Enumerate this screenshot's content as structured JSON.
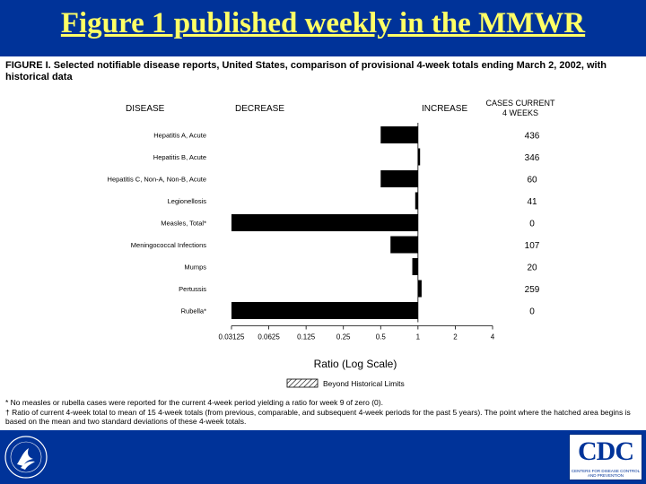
{
  "slide": {
    "title": "Figure 1 published weekly in the MMWR"
  },
  "figure": {
    "caption_lead": "FIGURE I. Selected notifiable disease reports, United States, comparison of provisional 4-week totals ending March 2, 2002, with historical data",
    "headers": {
      "disease": "DISEASE",
      "decrease": "DECREASE",
      "increase": "INCREASE",
      "cases_current": "CASES CURRENT",
      "weeks": "4 WEEKS"
    },
    "legend_label": "Beyond Historical Limits",
    "footnotes": [
      "* No measles or rubella cases were reported for the current 4-week period yielding a ratio for week 9 of zero (0).",
      "† Ratio of current 4-week total to mean of 15 4-week totals (from previous, comparable, and subsequent 4-week periods for the past 5 years). The point where the hatched area begins is based on the mean and two standard deviations of these 4-week totals."
    ]
  },
  "chart_data": {
    "type": "bar",
    "orientation": "horizontal",
    "scale": "log2",
    "xlabel": "Ratio (Log Scale)",
    "xlim": [
      0.03125,
      4
    ],
    "xticks": [
      "0.03125",
      "0.0625",
      "0.125",
      "0.25",
      "0.5",
      "1",
      "2",
      "4"
    ],
    "xtick_values": [
      0.03125,
      0.0625,
      0.125,
      0.25,
      0.5,
      1,
      2,
      4
    ],
    "baseline": 1,
    "categories": [
      "Hepatitis A, Acute",
      "Hepatitis B, Acute",
      "Hepatitis C, Non-A, Non-B, Acute",
      "Legionellosis",
      "Measles, Total*",
      "Meningococcal Infections",
      "Mumps",
      "Pertussis",
      "Rubella*"
    ],
    "ratios": [
      0.5,
      1.04,
      0.5,
      0.95,
      0.03125,
      0.6,
      0.9,
      1.07,
      0.03125
    ],
    "cases": [
      "436",
      "346",
      "60",
      "41",
      "0",
      "107",
      "20",
      "259",
      "0"
    ],
    "colors": {
      "bar": "#000000",
      "background": "#003399",
      "title": "#ffff66"
    }
  },
  "footer": {
    "cdc_logo_text": "CDC",
    "cdc_logo_subtext": "CENTERS FOR DISEASE CONTROL AND PREVENTION",
    "hhs_logo": "hhs-eagle-icon"
  }
}
